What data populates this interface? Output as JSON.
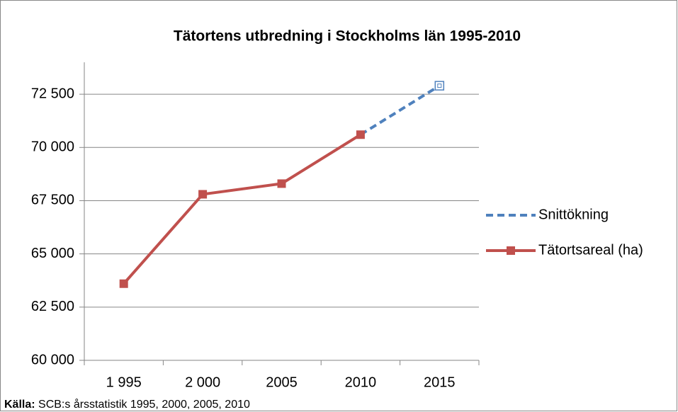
{
  "chart_data": {
    "type": "line",
    "title": "Tätortens utbredning i Stockholms län 1995-2010",
    "categories": [
      "1 995",
      "2 000",
      "2005",
      "2010",
      "2015"
    ],
    "series": [
      {
        "name": "Snittökning",
        "color": "#4f81bd",
        "dash": true,
        "marker": "hollow-square",
        "values": [
          null,
          null,
          null,
          70600,
          72900
        ]
      },
      {
        "name": "Tätortsareal (ha)",
        "color": "#c0504d",
        "dash": false,
        "marker": "square",
        "values": [
          63600,
          67800,
          68300,
          70600,
          null
        ]
      }
    ],
    "ylim": [
      60000,
      74000
    ],
    "yticks": [
      {
        "value": 60000,
        "label": "60 000"
      },
      {
        "value": 62500,
        "label": "62 500"
      },
      {
        "value": 65000,
        "label": "65 000"
      },
      {
        "value": 67500,
        "label": "67 500"
      },
      {
        "value": 70000,
        "label": "70 000"
      },
      {
        "value": 72500,
        "label": "72 500"
      }
    ],
    "grid": true,
    "legend": "right",
    "source_label": "Källa:",
    "source_text": "SCB:s årsstatistik 1995, 2000, 2005, 2010"
  }
}
